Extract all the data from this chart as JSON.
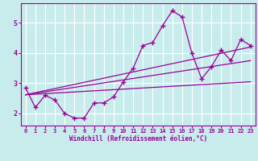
{
  "xlabel": "Windchill (Refroidissement éolien,°C)",
  "bg_color": "#c8ecec",
  "line_color": "#990099",
  "grid_color": "#ffffff",
  "xlim": [
    -0.5,
    23.5
  ],
  "ylim": [
    1.6,
    5.65
  ],
  "xticks": [
    0,
    1,
    2,
    3,
    4,
    5,
    6,
    7,
    8,
    9,
    10,
    11,
    12,
    13,
    14,
    15,
    16,
    17,
    18,
    19,
    20,
    21,
    22,
    23
  ],
  "yticks": [
    2,
    3,
    4,
    5
  ],
  "line_x": [
    0,
    1,
    2,
    3,
    4,
    5,
    6,
    7,
    8,
    9,
    10,
    11,
    12,
    13,
    14,
    15,
    16,
    17,
    18,
    19,
    20,
    21,
    22,
    23
  ],
  "line_y": [
    2.85,
    2.2,
    2.6,
    2.45,
    2.0,
    1.85,
    1.85,
    2.35,
    2.35,
    2.55,
    3.05,
    3.5,
    4.25,
    4.35,
    4.9,
    5.4,
    5.2,
    4.0,
    3.15,
    3.55,
    4.1,
    3.75,
    4.45,
    4.25
  ],
  "reg_lines": [
    {
      "x0": 0,
      "y0": 2.62,
      "x1": 23,
      "y1": 3.05
    },
    {
      "x0": 0,
      "y0": 2.62,
      "x1": 23,
      "y1": 3.75
    },
    {
      "x0": 0,
      "y0": 2.62,
      "x1": 23,
      "y1": 4.2
    }
  ]
}
